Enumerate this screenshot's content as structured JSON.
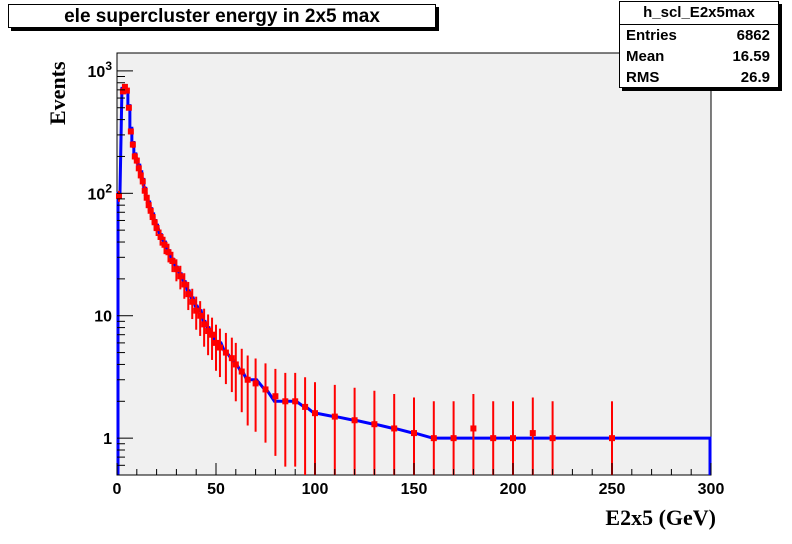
{
  "title": "ele supercluster energy in 2x5 max",
  "stats": {
    "name": "h_scl_E2x5max",
    "rows": [
      {
        "label": "Entries",
        "value": "6862"
      },
      {
        "label": "Mean",
        "value": "16.59"
      },
      {
        "label": "RMS",
        "value": "26.9"
      }
    ]
  },
  "chart_data": {
    "type": "line",
    "title": "ele supercluster energy in 2x5 max",
    "xlabel": "E2x5 (GeV)",
    "ylabel": "Events",
    "xlim": [
      0,
      300
    ],
    "ylim": [
      0.5,
      1400
    ],
    "yscale": "log",
    "grid": false,
    "x_ticks": [
      0,
      50,
      100,
      150,
      200,
      250,
      300
    ],
    "x_tick_labels": [
      "0",
      "50",
      "100",
      "150",
      "200",
      "250",
      "300"
    ],
    "y_tick_labels": [
      {
        "value": 1000,
        "base": "10",
        "exp": "3"
      },
      {
        "value": 100,
        "base": "10",
        "exp": "2"
      },
      {
        "value": 10,
        "text": "10"
      },
      {
        "value": 1,
        "text": "1"
      }
    ],
    "series": [
      {
        "style": "histogram",
        "color": "#0000ff",
        "points": [
          [
            1,
            100
          ],
          [
            3,
            720
          ],
          [
            4,
            760
          ],
          [
            5,
            700
          ],
          [
            6,
            520
          ],
          [
            7,
            340
          ],
          [
            8,
            260
          ],
          [
            9,
            210
          ],
          [
            10,
            190
          ],
          [
            11,
            170
          ],
          [
            12,
            150
          ],
          [
            13,
            130
          ],
          [
            14,
            110
          ],
          [
            15,
            90
          ],
          [
            16,
            85
          ],
          [
            17,
            75
          ],
          [
            18,
            68
          ],
          [
            19,
            60
          ],
          [
            20,
            55
          ],
          [
            22,
            46
          ],
          [
            24,
            40
          ],
          [
            26,
            34
          ],
          [
            28,
            29
          ],
          [
            30,
            25
          ],
          [
            32,
            22
          ],
          [
            34,
            19
          ],
          [
            36,
            16
          ],
          [
            38,
            14
          ],
          [
            40,
            12
          ],
          [
            42,
            11
          ],
          [
            44,
            9
          ],
          [
            46,
            8
          ],
          [
            48,
            7
          ],
          [
            50,
            6
          ],
          [
            52,
            6
          ],
          [
            55,
            5
          ],
          [
            58,
            4.5
          ],
          [
            60,
            4
          ],
          [
            63,
            3.5
          ],
          [
            66,
            3
          ],
          [
            70,
            3
          ],
          [
            75,
            2.5
          ],
          [
            80,
            2
          ],
          [
            85,
            2
          ],
          [
            90,
            2
          ],
          [
            95,
            1.8
          ],
          [
            100,
            1.6
          ],
          [
            110,
            1.5
          ],
          [
            120,
            1.4
          ],
          [
            130,
            1.3
          ],
          [
            140,
            1.2
          ],
          [
            150,
            1.1
          ],
          [
            160,
            1
          ],
          [
            170,
            1
          ],
          [
            180,
            1
          ],
          [
            190,
            1
          ],
          [
            200,
            1
          ],
          [
            210,
            1
          ],
          [
            220,
            1
          ],
          [
            230,
            1
          ],
          [
            240,
            1
          ],
          [
            250,
            1
          ],
          [
            260,
            1
          ],
          [
            270,
            1
          ],
          [
            280,
            1
          ],
          [
            290,
            1
          ],
          [
            299,
            1
          ]
        ]
      },
      {
        "style": "markers-with-errors",
        "color": "#ff0000",
        "points": [
          [
            1,
            95
          ],
          [
            3,
            680
          ],
          [
            4,
            740
          ],
          [
            5,
            690
          ],
          [
            6,
            500
          ],
          [
            7,
            320
          ],
          [
            8,
            250
          ],
          [
            9,
            200
          ],
          [
            10,
            185
          ],
          [
            11,
            160
          ],
          [
            12,
            140
          ],
          [
            13,
            125
          ],
          [
            14,
            105
          ],
          [
            15,
            92
          ],
          [
            16,
            80
          ],
          [
            17,
            72
          ],
          [
            18,
            64
          ],
          [
            19,
            58
          ],
          [
            20,
            52
          ],
          [
            22,
            44
          ],
          [
            24,
            38
          ],
          [
            26,
            33
          ],
          [
            28,
            28
          ],
          [
            30,
            24
          ],
          [
            32,
            21
          ],
          [
            34,
            18
          ],
          [
            36,
            15
          ],
          [
            38,
            13
          ],
          [
            40,
            11
          ],
          [
            42,
            10
          ],
          [
            44,
            8.5
          ],
          [
            46,
            7.5
          ],
          [
            48,
            7
          ],
          [
            50,
            6
          ],
          [
            52,
            5.5
          ],
          [
            55,
            5
          ],
          [
            58,
            4.5
          ],
          [
            60,
            4
          ],
          [
            63,
            3.5
          ],
          [
            66,
            3
          ],
          [
            70,
            2.8
          ],
          [
            75,
            2.5
          ],
          [
            80,
            2.2
          ],
          [
            85,
            2
          ],
          [
            90,
            2
          ],
          [
            95,
            1.8
          ],
          [
            100,
            1.6
          ],
          [
            110,
            1.5
          ],
          [
            120,
            1.4
          ],
          [
            130,
            1.3
          ],
          [
            140,
            1.2
          ],
          [
            150,
            1.1
          ],
          [
            160,
            1
          ],
          [
            170,
            1
          ],
          [
            180,
            1.2
          ],
          [
            190,
            1
          ],
          [
            200,
            1
          ],
          [
            210,
            1.1
          ],
          [
            220,
            1
          ],
          [
            250,
            1
          ]
        ]
      }
    ]
  }
}
